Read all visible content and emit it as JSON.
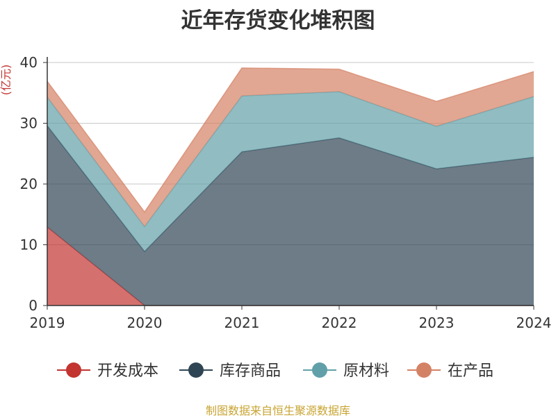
{
  "chart_data": {
    "type": "area",
    "stacked": true,
    "title": "近年存货变化堆积图",
    "ylabel": "(亿元)",
    "xlabel": "",
    "x": [
      "2019",
      "2020",
      "2021",
      "2022",
      "2023",
      "2024"
    ],
    "ylim": [
      0,
      40
    ],
    "yticks": [
      0,
      10,
      20,
      30,
      40
    ],
    "grid": true,
    "legend_position": "bottom",
    "series": [
      {
        "name": "开发成本",
        "color": "#c23531",
        "values": [
          12.9,
          0,
          0,
          0,
          0,
          0
        ]
      },
      {
        "name": "库存商品",
        "color": "#2f4554",
        "values": [
          16.7,
          8.9,
          25.3,
          27.6,
          22.5,
          24.4
        ]
      },
      {
        "name": "原材料",
        "color": "#61a0a8",
        "values": [
          4.7,
          4.1,
          9.2,
          7.6,
          7.0,
          10.0
        ]
      },
      {
        "name": "在产品",
        "color": "#d48265",
        "values": [
          2.6,
          2.4,
          4.6,
          3.7,
          4.1,
          4.1
        ]
      }
    ]
  },
  "source_note": "制图数据来自恒生聚源数据库"
}
